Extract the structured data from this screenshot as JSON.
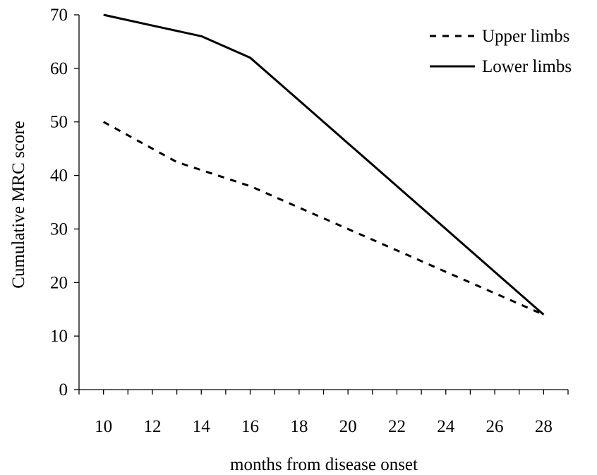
{
  "chart_data": {
    "type": "line",
    "title": "",
    "xlabel": "months from disease onset",
    "ylabel": "Cumulative MRC score",
    "x_ticks": [
      10,
      12,
      14,
      16,
      18,
      20,
      22,
      24,
      26,
      28
    ],
    "y_ticks": [
      0,
      10,
      20,
      30,
      40,
      50,
      60,
      70
    ],
    "xlim": [
      9,
      29
    ],
    "ylim": [
      0,
      70
    ],
    "grid": false,
    "legend_position": "top-right",
    "series": [
      {
        "name": "Upper limbs",
        "style": "dashed",
        "color": "#000000",
        "x": [
          10,
          13,
          16,
          19,
          22,
          25,
          28
        ],
        "y": [
          50,
          42.5,
          38,
          32,
          26,
          20,
          14
        ]
      },
      {
        "name": "Lower limbs",
        "style": "solid",
        "color": "#000000",
        "x": [
          10,
          12,
          14,
          16,
          18,
          20,
          22,
          24,
          26,
          28
        ],
        "y": [
          70,
          68,
          66,
          62,
          54,
          46,
          38,
          30,
          22,
          14
        ]
      }
    ]
  }
}
